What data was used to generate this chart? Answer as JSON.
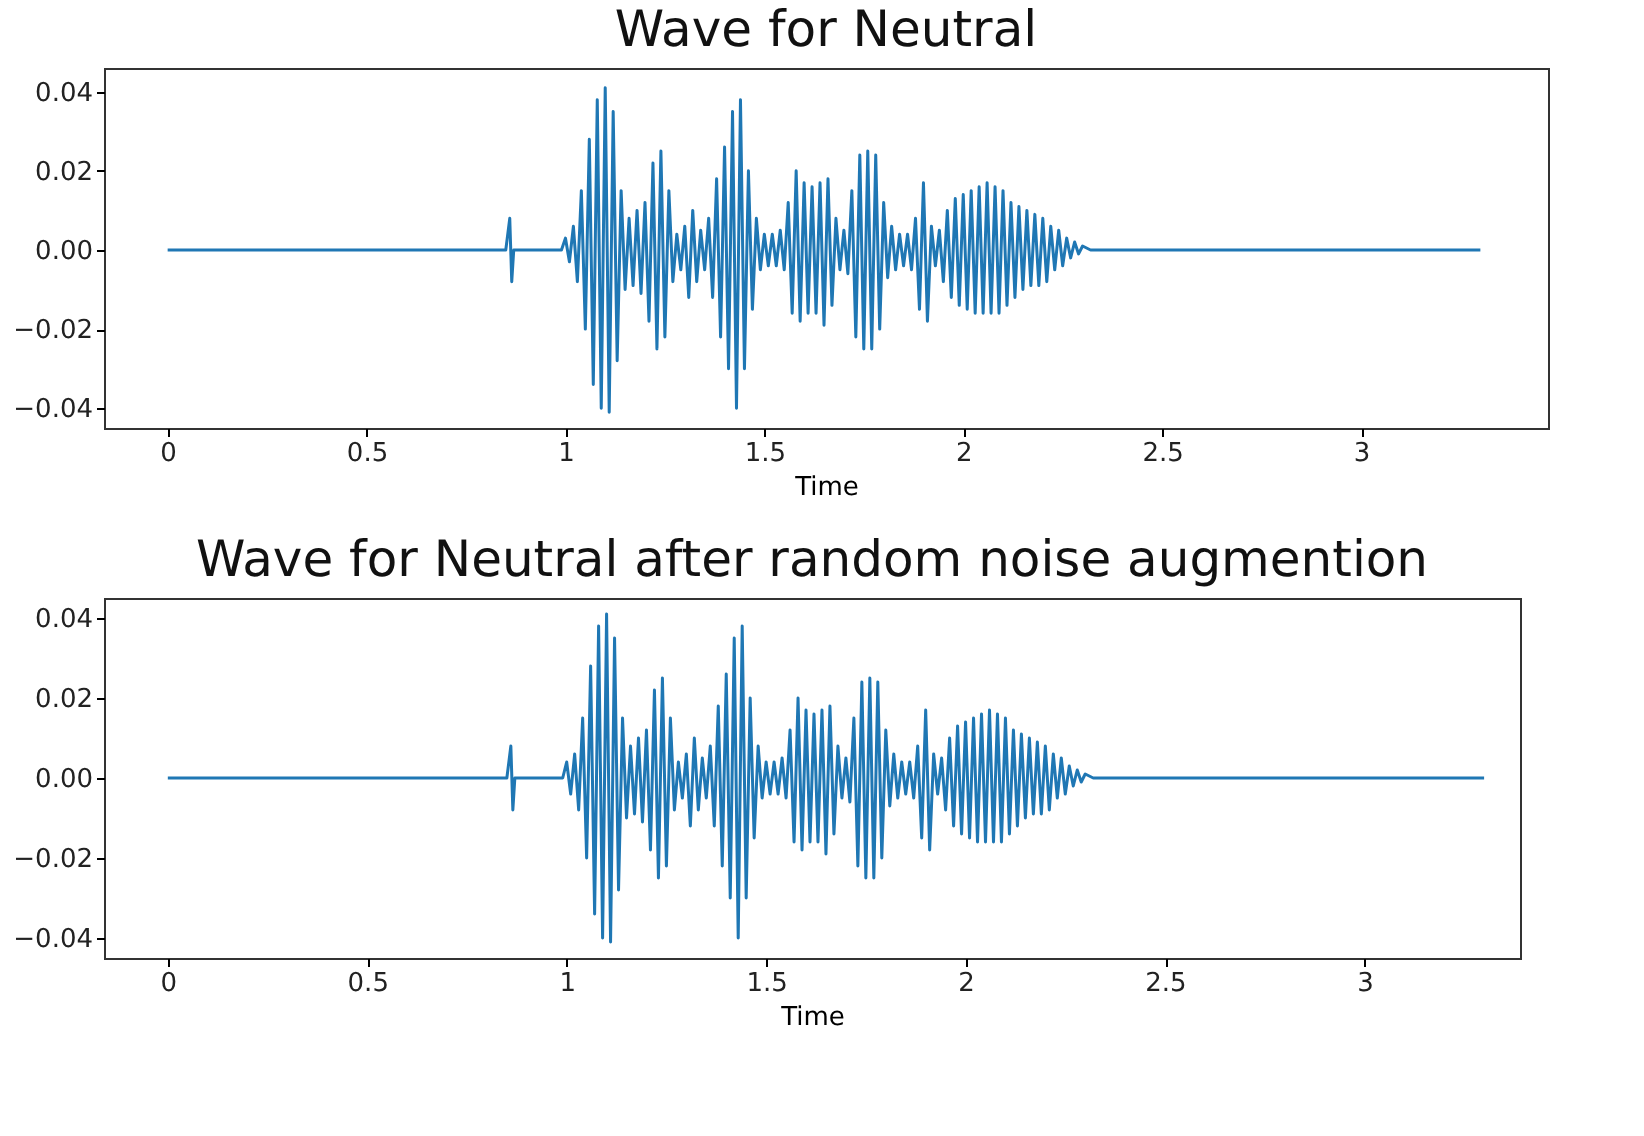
{
  "chart_data": [
    {
      "type": "line",
      "title": "Wave for Neutral",
      "xlabel": "Time",
      "xlim": [
        -0.16,
        3.47
      ],
      "ylim": [
        -0.045,
        0.046
      ],
      "xticks": [
        0,
        0.5,
        1,
        1.5,
        2,
        2.5,
        3
      ],
      "yticks": [
        {
          "value": -0.04,
          "label": "−0.04"
        },
        {
          "value": -0.02,
          "label": "−0.02"
        },
        {
          "value": 0,
          "label": "0.00"
        },
        {
          "value": 0.02,
          "label": "0.02"
        },
        {
          "value": 0.04,
          "label": "0.04"
        }
      ],
      "grid": false,
      "series": [
        {
          "color": "#1f77b4",
          "x": [
            0,
            0.85,
            0.86,
            0.865,
            0.87,
            0.99,
            1.0,
            1.01,
            1.02,
            1.03,
            1.04,
            1.05,
            1.06,
            1.07,
            1.08,
            1.09,
            1.1,
            1.11,
            1.12,
            1.13,
            1.14,
            1.15,
            1.16,
            1.17,
            1.18,
            1.19,
            1.2,
            1.21,
            1.22,
            1.23,
            1.24,
            1.25,
            1.26,
            1.27,
            1.28,
            1.29,
            1.3,
            1.31,
            1.32,
            1.33,
            1.34,
            1.35,
            1.36,
            1.37,
            1.38,
            1.39,
            1.4,
            1.41,
            1.42,
            1.43,
            1.44,
            1.45,
            1.46,
            1.47,
            1.48,
            1.49,
            1.5,
            1.51,
            1.52,
            1.53,
            1.54,
            1.55,
            1.56,
            1.57,
            1.58,
            1.59,
            1.6,
            1.61,
            1.62,
            1.63,
            1.64,
            1.65,
            1.66,
            1.67,
            1.68,
            1.69,
            1.7,
            1.71,
            1.72,
            1.73,
            1.74,
            1.75,
            1.76,
            1.77,
            1.78,
            1.79,
            1.8,
            1.81,
            1.82,
            1.83,
            1.84,
            1.85,
            1.86,
            1.87,
            1.88,
            1.89,
            1.9,
            1.91,
            1.92,
            1.93,
            1.94,
            1.95,
            1.96,
            1.97,
            1.98,
            1.99,
            2.0,
            2.01,
            2.02,
            2.03,
            2.04,
            2.05,
            2.06,
            2.07,
            2.08,
            2.09,
            2.1,
            2.11,
            2.12,
            2.13,
            2.14,
            2.15,
            2.16,
            2.17,
            2.18,
            2.19,
            2.2,
            2.21,
            2.22,
            2.23,
            2.24,
            2.25,
            2.26,
            2.27,
            2.28,
            2.29,
            2.3,
            2.32,
            3.3
          ],
          "values": [
            0,
            0,
            0.008,
            -0.008,
            0,
            0,
            0.003,
            -0.003,
            0.006,
            -0.008,
            0.015,
            -0.02,
            0.028,
            -0.034,
            0.038,
            -0.04,
            0.041,
            -0.041,
            0.035,
            -0.028,
            0.015,
            -0.01,
            0.008,
            -0.009,
            0.01,
            -0.011,
            0.012,
            -0.018,
            0.022,
            -0.025,
            0.025,
            -0.022,
            0.015,
            -0.008,
            0.004,
            -0.005,
            0.006,
            -0.012,
            0.01,
            -0.008,
            0.005,
            -0.005,
            0.008,
            -0.012,
            0.018,
            -0.022,
            0.026,
            -0.03,
            0.035,
            -0.04,
            0.038,
            -0.03,
            0.02,
            -0.015,
            0.008,
            -0.005,
            0.004,
            -0.004,
            0.004,
            -0.004,
            0.005,
            -0.005,
            0.012,
            -0.016,
            0.02,
            -0.018,
            0.017,
            -0.016,
            0.016,
            -0.016,
            0.017,
            -0.019,
            0.018,
            -0.014,
            0.008,
            -0.005,
            0.005,
            -0.006,
            0.015,
            -0.022,
            0.024,
            -0.025,
            0.025,
            -0.025,
            0.024,
            -0.02,
            0.012,
            -0.007,
            0.006,
            -0.005,
            0.004,
            -0.004,
            0.004,
            -0.005,
            0.008,
            -0.015,
            0.017,
            -0.018,
            0.006,
            -0.004,
            0.005,
            -0.008,
            0.01,
            -0.012,
            0.013,
            -0.014,
            0.014,
            -0.015,
            0.015,
            -0.016,
            0.016,
            -0.016,
            0.017,
            -0.016,
            0.016,
            -0.016,
            0.015,
            -0.014,
            0.012,
            -0.012,
            0.011,
            -0.01,
            0.01,
            -0.009,
            0.009,
            -0.009,
            0.008,
            -0.008,
            0.006,
            -0.005,
            0.005,
            -0.004,
            0.003,
            -0.002,
            0.002,
            -0.001,
            0.001,
            0,
            0
          ]
        }
      ]
    },
    {
      "type": "line",
      "title": "Wave for Neutral after random noise augmention",
      "xlabel": "Time",
      "xlim": [
        -0.16,
        3.39
      ],
      "ylim": [
        -0.045,
        0.045
      ],
      "xticks": [
        0,
        0.5,
        1,
        1.5,
        2,
        2.5,
        3
      ],
      "yticks": [
        {
          "value": -0.04,
          "label": "−0.04"
        },
        {
          "value": -0.02,
          "label": "−0.02"
        },
        {
          "value": 0,
          "label": "0.00"
        },
        {
          "value": 0.02,
          "label": "0.02"
        },
        {
          "value": 0.04,
          "label": "0.04"
        }
      ],
      "grid": false,
      "series": [
        {
          "color": "#1f77b4",
          "x": [
            0,
            0.85,
            0.86,
            0.865,
            0.87,
            0.99,
            1.0,
            1.01,
            1.02,
            1.03,
            1.04,
            1.05,
            1.06,
            1.07,
            1.08,
            1.09,
            1.1,
            1.11,
            1.12,
            1.13,
            1.14,
            1.15,
            1.16,
            1.17,
            1.18,
            1.19,
            1.2,
            1.21,
            1.22,
            1.23,
            1.24,
            1.25,
            1.26,
            1.27,
            1.28,
            1.29,
            1.3,
            1.31,
            1.32,
            1.33,
            1.34,
            1.35,
            1.36,
            1.37,
            1.38,
            1.39,
            1.4,
            1.41,
            1.42,
            1.43,
            1.44,
            1.45,
            1.46,
            1.47,
            1.48,
            1.49,
            1.5,
            1.51,
            1.52,
            1.53,
            1.54,
            1.55,
            1.56,
            1.57,
            1.58,
            1.59,
            1.6,
            1.61,
            1.62,
            1.63,
            1.64,
            1.65,
            1.66,
            1.67,
            1.68,
            1.69,
            1.7,
            1.71,
            1.72,
            1.73,
            1.74,
            1.75,
            1.76,
            1.77,
            1.78,
            1.79,
            1.8,
            1.81,
            1.82,
            1.83,
            1.84,
            1.85,
            1.86,
            1.87,
            1.88,
            1.89,
            1.9,
            1.91,
            1.92,
            1.93,
            1.94,
            1.95,
            1.96,
            1.97,
            1.98,
            1.99,
            2.0,
            2.01,
            2.02,
            2.03,
            2.04,
            2.05,
            2.06,
            2.07,
            2.08,
            2.09,
            2.1,
            2.11,
            2.12,
            2.13,
            2.14,
            2.15,
            2.16,
            2.17,
            2.18,
            2.19,
            2.2,
            2.21,
            2.22,
            2.23,
            2.24,
            2.25,
            2.26,
            2.27,
            2.28,
            2.29,
            2.3,
            2.32,
            3.3
          ],
          "values": [
            0,
            0,
            0.008,
            -0.008,
            0,
            0,
            0.004,
            -0.004,
            0.006,
            -0.008,
            0.015,
            -0.02,
            0.028,
            -0.034,
            0.038,
            -0.04,
            0.041,
            -0.041,
            0.035,
            -0.028,
            0.015,
            -0.01,
            0.008,
            -0.009,
            0.01,
            -0.011,
            0.012,
            -0.018,
            0.022,
            -0.025,
            0.025,
            -0.022,
            0.015,
            -0.008,
            0.004,
            -0.005,
            0.006,
            -0.012,
            0.01,
            -0.008,
            0.005,
            -0.005,
            0.008,
            -0.012,
            0.018,
            -0.022,
            0.026,
            -0.03,
            0.035,
            -0.04,
            0.038,
            -0.03,
            0.02,
            -0.015,
            0.008,
            -0.005,
            0.004,
            -0.004,
            0.004,
            -0.004,
            0.005,
            -0.005,
            0.012,
            -0.016,
            0.02,
            -0.018,
            0.017,
            -0.016,
            0.016,
            -0.016,
            0.017,
            -0.019,
            0.018,
            -0.014,
            0.008,
            -0.005,
            0.005,
            -0.006,
            0.015,
            -0.022,
            0.024,
            -0.025,
            0.025,
            -0.025,
            0.024,
            -0.02,
            0.012,
            -0.007,
            0.006,
            -0.005,
            0.004,
            -0.004,
            0.004,
            -0.005,
            0.008,
            -0.015,
            0.017,
            -0.018,
            0.006,
            -0.004,
            0.005,
            -0.008,
            0.01,
            -0.012,
            0.013,
            -0.014,
            0.014,
            -0.015,
            0.015,
            -0.016,
            0.016,
            -0.016,
            0.017,
            -0.016,
            0.016,
            -0.016,
            0.015,
            -0.014,
            0.012,
            -0.012,
            0.011,
            -0.01,
            0.01,
            -0.009,
            0.009,
            -0.009,
            0.008,
            -0.008,
            0.006,
            -0.005,
            0.005,
            -0.004,
            0.003,
            -0.002,
            0.002,
            -0.001,
            0.001,
            0,
            0
          ]
        }
      ]
    }
  ]
}
